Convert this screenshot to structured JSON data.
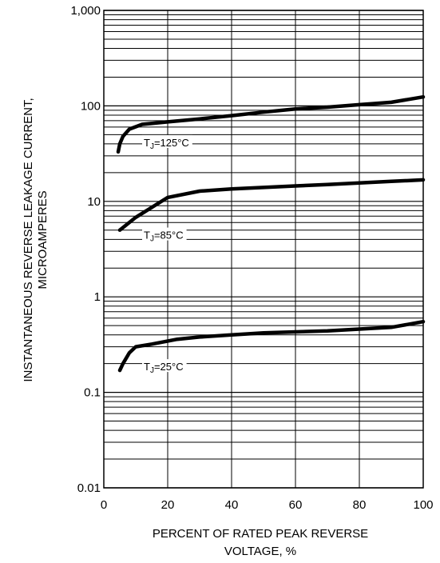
{
  "chart_data": {
    "type": "line",
    "x_scale": "linear",
    "y_scale": "log",
    "xlim": [
      0,
      100
    ],
    "ylim": [
      0.01,
      1000
    ],
    "xticks": [
      0,
      20,
      40,
      60,
      80,
      100
    ],
    "x_tick_labels": [
      "0",
      "20",
      "40",
      "60",
      "80",
      "100"
    ],
    "yticks": [
      0.01,
      0.1,
      1,
      10,
      100,
      1000
    ],
    "y_tick_labels": [
      "0.01",
      "0.1",
      "1",
      "10",
      "100",
      "1,000"
    ],
    "xlabel": [
      "PERCENT OF RATED PEAK REVERSE",
      "VOLTAGE, %"
    ],
    "ylabel": [
      "INSTANTANEOUS REVERSE LEAKAGE CURRENT,",
      "MICROAMPERES"
    ],
    "grid": "horizontal log minor lines",
    "series": [
      {
        "label_prefix": "T",
        "label_sub": "J",
        "label_suffix": "=125°C",
        "x": [
          4.5,
          5,
          6,
          8,
          12,
          20,
          30,
          40,
          50,
          60,
          70,
          80,
          90,
          100
        ],
        "y": [
          33,
          40,
          48,
          57,
          64,
          68,
          73,
          79,
          86,
          93,
          97,
          103,
          109,
          124
        ]
      },
      {
        "label_prefix": "T",
        "label_sub": "J",
        "label_suffix": "=85°C",
        "x": [
          5,
          10,
          20,
          30,
          40,
          50,
          60,
          70,
          80,
          90,
          100
        ],
        "y": [
          5,
          6.8,
          11,
          12.8,
          13.5,
          14,
          14.5,
          15,
          15.6,
          16.2,
          16.8
        ]
      },
      {
        "label_prefix": "T",
        "label_sub": "J",
        "label_suffix": "=25°C",
        "x": [
          5,
          6,
          8,
          10,
          15,
          23,
          30,
          40,
          50,
          60,
          70,
          80,
          90,
          100
        ],
        "y": [
          0.17,
          0.2,
          0.26,
          0.3,
          0.32,
          0.36,
          0.38,
          0.4,
          0.42,
          0.43,
          0.44,
          0.46,
          0.48,
          0.55
        ]
      }
    ]
  }
}
